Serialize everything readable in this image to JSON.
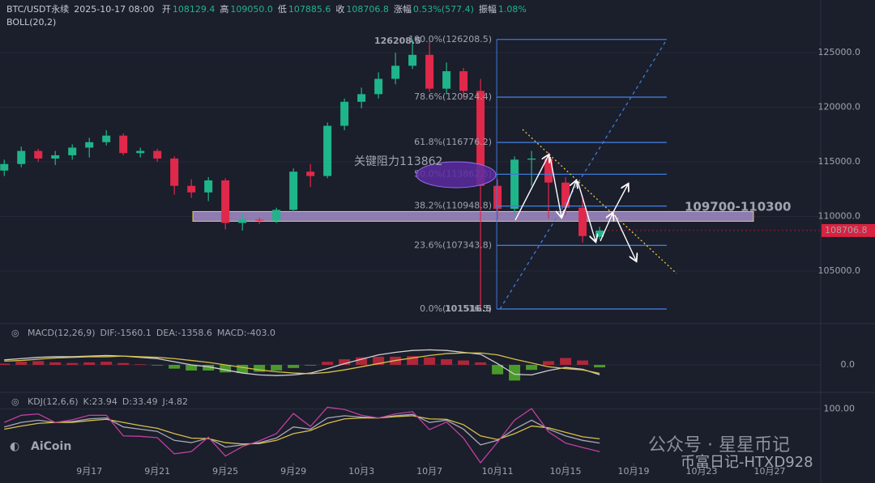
{
  "chart_data": {
    "type": "candlestick",
    "title": "BTC/USDT永续",
    "timestamp": "2025-10-17 08:00",
    "header": [
      {
        "label": "开",
        "value": "108129.4"
      },
      {
        "label": "高",
        "value": "109050.0"
      },
      {
        "label": "低",
        "value": "107885.6"
      },
      {
        "label": "收",
        "value": "108706.8"
      },
      {
        "label": "涨幅",
        "value": "0.53%(577.4)"
      },
      {
        "label": "振幅",
        "value": "1.08%"
      }
    ],
    "overlay": "BOLL(20,2)",
    "up_color": "#1fb58a",
    "down_color": "#e0294a",
    "candles": [
      [
        114200,
        115200,
        113700,
        114800
      ],
      [
        114800,
        116400,
        114500,
        116000
      ],
      [
        116000,
        116200,
        115000,
        115300
      ],
      [
        115300,
        116000,
        114700,
        115600
      ],
      [
        115600,
        116600,
        115200,
        116300
      ],
      [
        116300,
        117200,
        115400,
        116800
      ],
      [
        116800,
        117900,
        116500,
        117400
      ],
      [
        117400,
        117600,
        115600,
        115800
      ],
      [
        115800,
        116300,
        115400,
        116000
      ],
      [
        116000,
        116200,
        115000,
        115300
      ],
      [
        115300,
        115500,
        112000,
        112800
      ],
      [
        112800,
        113400,
        111700,
        112200
      ],
      [
        112200,
        113600,
        111400,
        113300
      ],
      [
        113300,
        113500,
        108800,
        109400
      ],
      [
        109400,
        110300,
        108700,
        109700
      ],
      [
        109700,
        109900,
        109300,
        109600
      ],
      [
        109600,
        110800,
        109400,
        110600
      ],
      [
        110600,
        114400,
        110400,
        114100
      ],
      [
        114100,
        114800,
        112700,
        113700
      ],
      [
        113700,
        118600,
        113500,
        118300
      ],
      [
        118300,
        120800,
        117900,
        120500
      ],
      [
        120500,
        121800,
        119900,
        121200
      ],
      [
        121200,
        123200,
        120800,
        122600
      ],
      [
        122600,
        125000,
        122100,
        123800
      ],
      [
        123800,
        126208.5,
        123500,
        124800
      ],
      [
        124800,
        126000,
        121400,
        121700
      ],
      [
        121700,
        124100,
        121200,
        123300
      ],
      [
        123300,
        123600,
        120800,
        121500
      ],
      [
        121500,
        122600,
        101516.5,
        112800
      ],
      [
        112800,
        113400,
        109700,
        110700
      ],
      [
        110700,
        115500,
        110200,
        115200
      ],
      [
        115200,
        116000,
        112800,
        115300
      ],
      [
        115300,
        115900,
        109800,
        113100
      ],
      [
        113100,
        113600,
        110100,
        110800
      ],
      [
        110800,
        111900,
        107600,
        108200
      ],
      [
        108129.4,
        109050,
        107885.6,
        108706.8
      ]
    ],
    "ylim": [
      100550,
      127600
    ],
    "yticks": [
      {
        "value": 105000,
        "label": "105000.0"
      },
      {
        "value": 110000,
        "label": "110000.0"
      },
      {
        "value": 115000,
        "label": "115000.0"
      },
      {
        "value": 120000,
        "label": "120000.0"
      },
      {
        "value": 125000,
        "label": "125000.0"
      }
    ],
    "xlim": [
      -0.25,
      48
    ],
    "xticks": [
      {
        "value": 5,
        "label": "9月17"
      },
      {
        "value": 9,
        "label": "9月21"
      },
      {
        "value": 13,
        "label": "9月25"
      },
      {
        "value": 17,
        "label": "9月29"
      },
      {
        "value": 21,
        "label": "10月3"
      },
      {
        "value": 25,
        "label": "10月7"
      },
      {
        "value": 29,
        "label": "10月11"
      },
      {
        "value": 33,
        "label": "10月15"
      },
      {
        "value": 37,
        "label": "10月19"
      },
      {
        "value": 41,
        "label": "10月23"
      },
      {
        "value": 45,
        "label": "10月27"
      }
    ],
    "last_price": 108706.8,
    "high_label": 126208.5,
    "low_label": 101516.5,
    "fib": {
      "color": "#3d7bd9",
      "levels": [
        {
          "value": 126208.5,
          "label": "100.0%(126208.5)"
        },
        {
          "value": 120924.4,
          "label": "78.6%(120924.4)"
        },
        {
          "value": 116776.2,
          "label": "61.8%(116776.2)"
        },
        {
          "value": 113862.5,
          "label": "50.0%(113862.5)"
        },
        {
          "value": 110948.8,
          "label": "38.2%(110948.8)"
        },
        {
          "value": 107343.8,
          "label": "23.6%(107343.8)"
        },
        {
          "value": 101516.5,
          "label": "0.0%(101516.5)"
        }
      ]
    },
    "resistance_note": "关键阻力113862",
    "support_zone": {
      "range": [
        109700,
        110300
      ],
      "label": "109700-110300",
      "color": "#b49be0"
    },
    "panels": [
      {
        "type": "macd",
        "header": [
          {
            "text": "MACD(12,26,9)",
            "color": "#a0a4b0"
          },
          {
            "text": "DIF:-1560.1",
            "color": "#d0d0d0"
          },
          {
            "text": "DEA:-1358.6",
            "color": "#e6cc4a"
          },
          {
            "text": "MACD:-403.0",
            "color": "#e0294a"
          }
        ],
        "ylim": [
          -4000,
          4000
        ],
        "yticks": [
          {
            "value": 0,
            "label": "0.0"
          }
        ],
        "histogram": [
          200,
          500,
          600,
          400,
          300,
          400,
          500,
          300,
          100,
          -100,
          -600,
          -900,
          -900,
          -1200,
          -1300,
          -1100,
          -900,
          -500,
          -100,
          500,
          900,
          1200,
          1300,
          1300,
          1400,
          1200,
          900,
          700,
          400,
          -1500,
          -2500,
          -800,
          600,
          1100,
          700,
          -403
        ],
        "up_color": "#b0263a",
        "down_color": "#4a9a2a",
        "series": [
          {
            "name": "DIF",
            "color": "#cfcfcf",
            "values": [
              800,
              1000,
              1200,
              1300,
              1300,
              1400,
              1500,
              1400,
              1200,
              1000,
              500,
              0,
              -300,
              -800,
              -1300,
              -1600,
              -1700,
              -1600,
              -1300,
              -600,
              200,
              900,
              1600,
              2000,
              2300,
              2400,
              2300,
              2000,
              1700,
              200,
              -1500,
              -1600,
              -900,
              -400,
              -700,
              -1560.1
            ]
          },
          {
            "name": "DEA",
            "color": "#d6c048",
            "values": [
              600,
              700,
              900,
              1100,
              1200,
              1300,
              1300,
              1400,
              1300,
              1200,
              1000,
              700,
              400,
              0,
              -400,
              -800,
              -1100,
              -1300,
              -1400,
              -1200,
              -800,
              -300,
              200,
              700,
              1100,
              1500,
              1800,
              1900,
              1900,
              1600,
              900,
              300,
              -300,
              -600,
              -800,
              -1358.6
            ]
          }
        ]
      },
      {
        "type": "kdj",
        "header": [
          {
            "text": "KDJ(12,6,6)",
            "color": "#a0a4b0"
          },
          {
            "text": "K:23.94",
            "color": "#d0d0d0"
          },
          {
            "text": "D:33.49",
            "color": "#e6cc4a"
          },
          {
            "text": "J:4.82",
            "color": "#c040a0"
          }
        ],
        "ylim": [
          -20,
          110
        ],
        "yticks": [
          {
            "value": 100,
            "label": "100.00"
          }
        ],
        "series": [
          {
            "name": "K",
            "color": "#a8a8b8",
            "values": [
              60,
              70,
              75,
              70,
              72,
              78,
              80,
              60,
              55,
              50,
              30,
              25,
              35,
              15,
              20,
              25,
              35,
              60,
              55,
              80,
              85,
              82,
              80,
              85,
              88,
              70,
              75,
              55,
              20,
              30,
              55,
              75,
              55,
              40,
              30,
              23.94
            ]
          },
          {
            "name": "D",
            "color": "#d6c048",
            "values": [
              55,
              62,
              68,
              70,
              70,
              74,
              77,
              70,
              63,
              57,
              45,
              35,
              34,
              25,
              22,
              23,
              30,
              45,
              52,
              68,
              78,
              80,
              80,
              83,
              85,
              78,
              77,
              65,
              40,
              32,
              45,
              62,
              58,
              48,
              38,
              33.49
            ]
          },
          {
            "name": "J",
            "color": "#c040a0",
            "values": [
              70,
              86,
              89,
              70,
              76,
              86,
              86,
              40,
              39,
              36,
              0,
              5,
              37,
              -5,
              16,
              29,
              45,
              90,
              61,
              104,
              99,
              86,
              80,
              89,
              94,
              54,
              71,
              35,
              -20,
              26,
              75,
              101,
              49,
              24,
              14,
              4.82
            ]
          }
        ]
      }
    ],
    "watermarks": [
      "AiCoin",
      "公众号 · 星星币记",
      "币富日记-HTXD928"
    ]
  }
}
